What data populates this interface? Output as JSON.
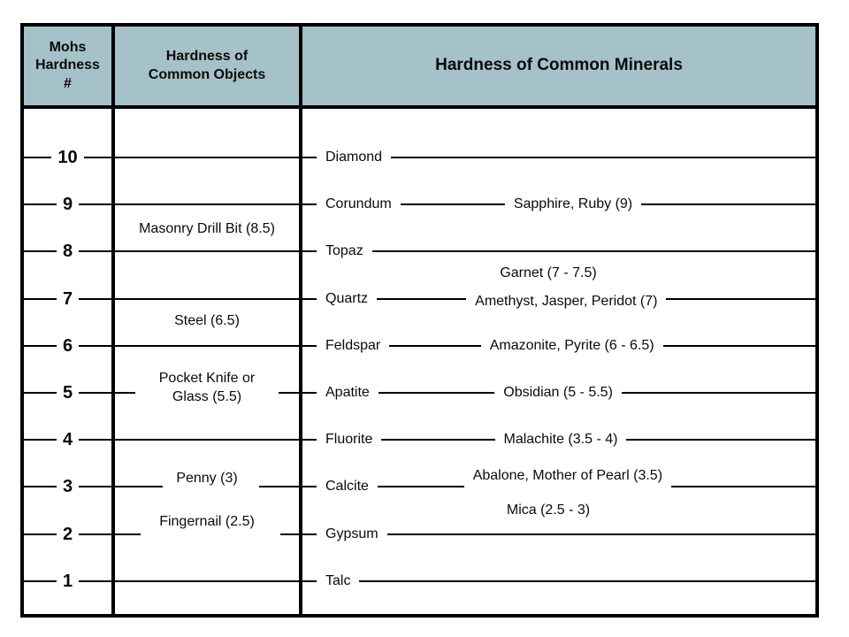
{
  "header": {
    "col1": "Mohs\nHardness\n#",
    "col2": "Hardness of\nCommon Objects",
    "col3": "Hardness of Common Minerals"
  },
  "colors": {
    "header_bg": "#a5c2c8",
    "line": "#000000",
    "text": "#0a0a0a"
  },
  "chart_data": {
    "type": "table",
    "columns": [
      "Mohs Hardness #",
      "Hardness of Common Objects",
      "Hardness of Common Minerals"
    ],
    "axis": {
      "label": "Mohs Hardness #",
      "min": 1,
      "max": 10,
      "ticks": [
        10,
        9,
        8,
        7,
        6,
        5,
        4,
        3,
        2,
        1
      ]
    },
    "common_objects": [
      {
        "label": "Masonry Drill Bit (8.5)",
        "hardness": 8.5
      },
      {
        "label": "Steel (6.5)",
        "hardness": 6.5
      },
      {
        "label": "Pocket Knife or\nGlass (5.5)",
        "hardness": 5.5
      },
      {
        "label": "Penny (3)",
        "hardness": 3
      },
      {
        "label": "Fingernail (2.5)",
        "hardness": 2.5
      }
    ],
    "minerals": [
      {
        "name": "Diamond",
        "hardness": 10
      },
      {
        "name": "Corundum",
        "hardness": 9,
        "examples": "Sapphire, Ruby (9)"
      },
      {
        "name": "Topaz",
        "hardness": 8
      },
      {
        "name": "Quartz",
        "hardness": 7,
        "examples": "Amethyst, Jasper, Peridot (7)"
      },
      {
        "name": "Feldspar",
        "hardness": 6,
        "examples": "Amazonite, Pyrite (6 - 6.5)"
      },
      {
        "name": "Apatite",
        "hardness": 5,
        "examples": "Obsidian (5 - 5.5)"
      },
      {
        "name": "Fluorite",
        "hardness": 4,
        "examples": "Malachite (3.5 - 4)"
      },
      {
        "name": "Calcite",
        "hardness": 3,
        "examples": "Abalone, Mother of Pearl (3.5)"
      },
      {
        "name": "Gypsum",
        "hardness": 2
      },
      {
        "name": "Talc",
        "hardness": 1
      }
    ],
    "floating_labels": [
      {
        "text": "Garnet (7 - 7.5)",
        "hardness_min": 7,
        "hardness_max": 7.5
      },
      {
        "text": "Mica (2.5 - 3)",
        "hardness_min": 2.5,
        "hardness_max": 3
      }
    ]
  }
}
